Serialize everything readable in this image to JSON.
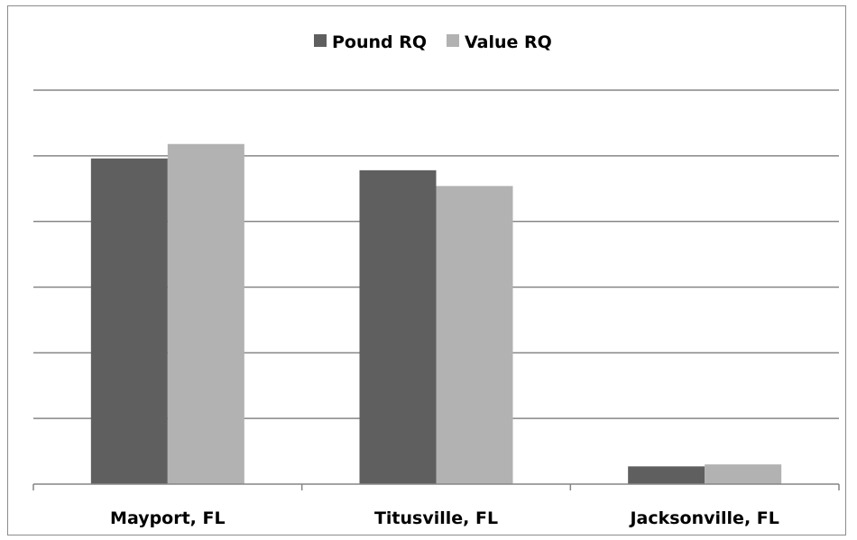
{
  "chart_data": {
    "type": "bar",
    "title": "",
    "xlabel": "",
    "ylabel": "",
    "categories": [
      "Mayport, FL",
      "Titusville, FL",
      "Jacksonville, FL"
    ],
    "series": [
      {
        "name": "Pound RQ",
        "color": "#5f5f5f",
        "values": [
          0.496,
          0.478,
          0.027
        ]
      },
      {
        "name": "Value RQ",
        "color": "#b2b2b2",
        "values": [
          0.518,
          0.454,
          0.03
        ]
      }
    ],
    "ylim": [
      0,
      0.6
    ],
    "y_gridline_step": 0.1,
    "y_tick_labels_visible": false,
    "grid": true,
    "legend_position": "top-center"
  }
}
